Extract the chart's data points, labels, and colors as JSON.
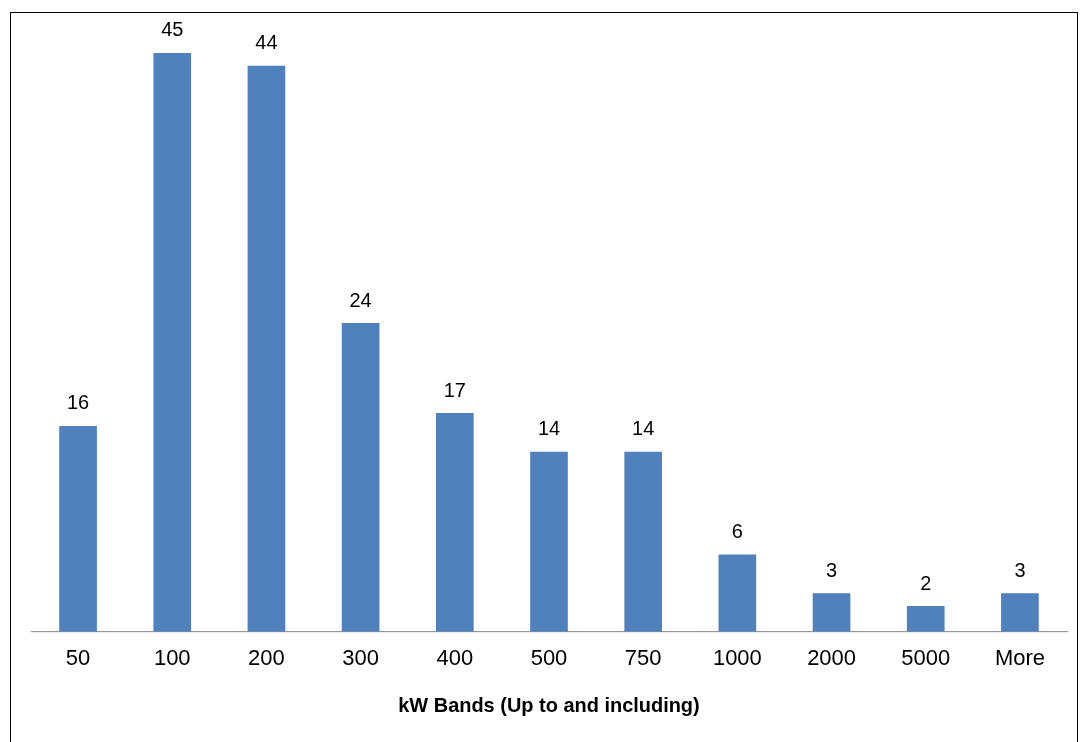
{
  "chart_data": {
    "type": "bar",
    "xlabel": "kW Bands (Up to and including)",
    "categories": [
      "50",
      "100",
      "200",
      "300",
      "400",
      "500",
      "750",
      "1000",
      "2000",
      "5000",
      "More"
    ],
    "values": [
      16,
      45,
      44,
      24,
      17,
      14,
      14,
      6,
      3,
      2,
      3
    ],
    "color": "#4f81bd",
    "data_labels": true,
    "grid": false,
    "legend": false
  }
}
